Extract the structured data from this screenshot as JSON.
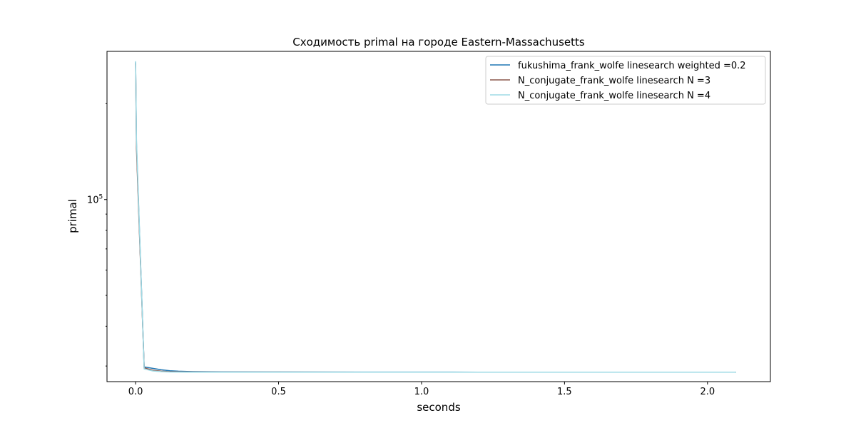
{
  "chart_data": {
    "type": "line",
    "title": "Сходимость primal на городе Eastern-Massachusetts",
    "xlabel": "seconds",
    "ylabel": "primal",
    "xlim": [
      -0.1,
      2.22
    ],
    "ylim": [
      26800,
      292000
    ],
    "yscale": "log",
    "xticks": [
      0.0,
      0.5,
      1.0,
      1.5,
      2.0
    ],
    "xtick_labels": [
      "0.0",
      "0.5",
      "1.0",
      "1.5",
      "2.0"
    ],
    "ytick_major": [
      100000
    ],
    "ytick_major_label": {
      "base": "10",
      "exp": "5"
    },
    "ytick_minor": [
      30000,
      40000,
      50000,
      60000,
      70000,
      80000,
      90000,
      200000
    ],
    "grid": false,
    "legend_position": "top-right",
    "series": [
      {
        "name": "fukushima_frank_wolfe linesearch weighted =0.2",
        "color": "#1f77b4",
        "x": [
          0.0,
          0.003,
          0.03,
          0.06,
          0.09,
          0.12,
          0.15,
          0.2,
          0.3,
          0.5,
          0.8,
          1.2,
          1.6,
          2.1
        ],
        "y": [
          270000,
          150000,
          29800,
          29500,
          29200,
          29000,
          28900,
          28800,
          28750,
          28730,
          28720,
          28710,
          28705,
          28700
        ]
      },
      {
        "name": "N_conjugate_frank_wolfe linesearch N =3",
        "color": "#8c564b",
        "x": [
          0.0,
          0.003,
          0.03,
          0.06,
          0.09,
          0.12,
          0.15,
          0.2,
          0.3,
          0.5,
          0.8,
          1.2,
          1.6,
          2.1
        ],
        "y": [
          268000,
          145000,
          29600,
          29100,
          28900,
          28800,
          28760,
          28740,
          28725,
          28715,
          28710,
          28705,
          28702,
          28700
        ]
      },
      {
        "name": "N_conjugate_frank_wolfe linesearch N =4",
        "color": "#9edae5",
        "x": [
          0.0,
          0.003,
          0.03,
          0.06,
          0.09,
          0.12,
          0.15,
          0.2,
          0.3,
          0.5,
          0.8,
          1.2,
          1.6,
          2.1
        ],
        "y": [
          272000,
          155000,
          29400,
          28950,
          28800,
          28740,
          28720,
          28710,
          28705,
          28702,
          28701,
          28700,
          28700,
          28700
        ]
      }
    ]
  }
}
